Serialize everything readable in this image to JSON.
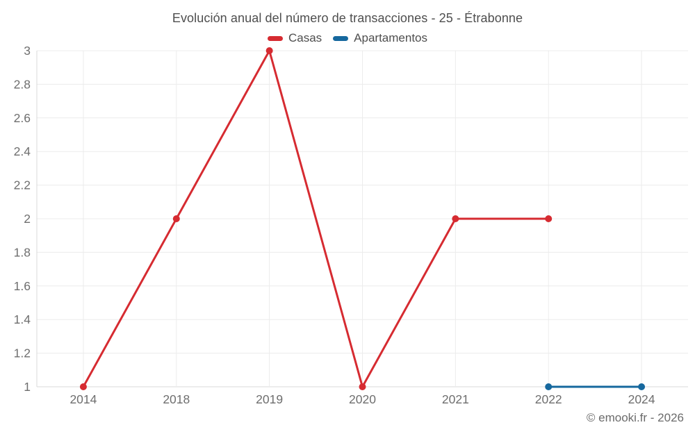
{
  "page": {
    "footer": "© emooki.fr - 2026"
  },
  "chart_data": {
    "type": "line",
    "title": "Evolución anual del número de transacciones - 25 - Étrabonne",
    "categories": [
      "2014",
      "2018",
      "2019",
      "2020",
      "2021",
      "2022",
      "2024"
    ],
    "series": [
      {
        "name": "Casas",
        "color": "#d62b31",
        "values": [
          1,
          2,
          3,
          1,
          2,
          2,
          null
        ]
      },
      {
        "name": "Apartamentos",
        "color": "#16689e",
        "values": [
          null,
          null,
          null,
          null,
          null,
          1,
          1
        ]
      }
    ],
    "ylim": [
      1,
      3
    ],
    "y_ticks": [
      1,
      1.2,
      1.4,
      1.6,
      1.8,
      2,
      2.2,
      2.4,
      2.6,
      2.8,
      3
    ],
    "grid": true,
    "legend_position": "top",
    "grid_color": "#ececec",
    "axis_color": "#d9d9d9",
    "tick_text_color": "#6e6e6e",
    "title_color": "#4e4e4e"
  }
}
